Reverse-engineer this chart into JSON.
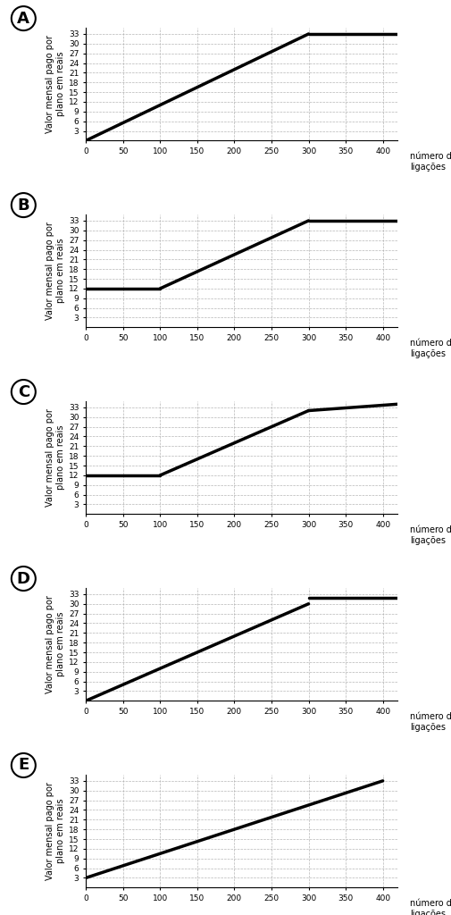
{
  "graphs": [
    {
      "label": "A",
      "segments": [
        {
          "x": [
            0,
            300
          ],
          "y": [
            0,
            33
          ]
        },
        {
          "x": [
            300,
            420
          ],
          "y": [
            33,
            33
          ]
        }
      ]
    },
    {
      "label": "B",
      "segments": [
        {
          "x": [
            0,
            100
          ],
          "y": [
            12,
            12
          ]
        },
        {
          "x": [
            100,
            300
          ],
          "y": [
            12,
            33
          ]
        },
        {
          "x": [
            300,
            420
          ],
          "y": [
            33,
            33
          ]
        }
      ]
    },
    {
      "label": "C",
      "segments": [
        {
          "x": [
            0,
            100
          ],
          "y": [
            12,
            12
          ]
        },
        {
          "x": [
            100,
            300
          ],
          "y": [
            12,
            32
          ]
        },
        {
          "x": [
            300,
            420
          ],
          "y": [
            32,
            34
          ]
        }
      ]
    },
    {
      "label": "D",
      "segments": [
        {
          "x": [
            0,
            300
          ],
          "y": [
            0,
            30
          ]
        },
        {
          "x": [
            300,
            420
          ],
          "y": [
            32,
            32
          ]
        }
      ]
    },
    {
      "label": "E",
      "segments": [
        {
          "x": [
            0,
            400
          ],
          "y": [
            3,
            33
          ]
        }
      ]
    }
  ],
  "xlim": [
    0,
    420
  ],
  "ylim": [
    0,
    35
  ],
  "xticks": [
    0,
    50,
    100,
    150,
    200,
    250,
    300,
    350,
    400
  ],
  "yticks": [
    3,
    6,
    9,
    12,
    15,
    18,
    21,
    24,
    27,
    30,
    33
  ],
  "xlabel": "número de\nligações",
  "ylabel": "Valor mensal pago por\nplano em reais",
  "line_color": "#000000",
  "line_width": 2.5,
  "bg_color": "#ffffff",
  "grid_color": "#aaaaaa",
  "label_fontsize": 7,
  "tick_fontsize": 6.5,
  "letter_fontsize": 13
}
